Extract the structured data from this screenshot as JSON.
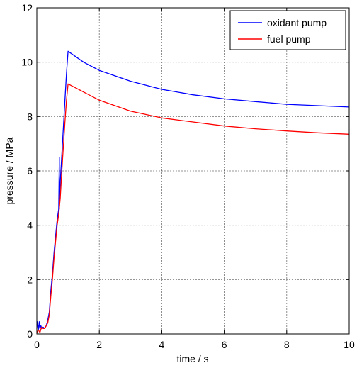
{
  "chart_data": {
    "type": "line",
    "title": "",
    "xlabel": "time / s",
    "ylabel": "pressure / MPa",
    "xlim": [
      0,
      10
    ],
    "ylim": [
      0,
      12
    ],
    "xticks": [
      0,
      2,
      4,
      6,
      8,
      10
    ],
    "yticks": [
      0,
      2,
      4,
      6,
      8,
      10,
      12
    ],
    "grid": true,
    "legend_position": "top-right",
    "series": [
      {
        "name": "oxidant pump",
        "color": "#0000ff",
        "x": [
          0.0,
          0.02,
          0.05,
          0.08,
          0.1,
          0.13,
          0.16,
          0.2,
          0.25,
          0.3,
          0.35,
          0.4,
          0.45,
          0.5,
          0.55,
          0.6,
          0.65,
          0.7,
          0.72,
          0.72,
          0.72,
          0.75,
          0.8,
          0.85,
          0.9,
          0.95,
          1.0,
          1.5,
          2.0,
          3.0,
          4.0,
          5.0,
          6.0,
          7.0,
          8.0,
          9.0,
          10.0
        ],
        "values": [
          0.2,
          0.45,
          0.15,
          0.45,
          0.2,
          0.3,
          0.2,
          0.25,
          0.2,
          0.3,
          0.5,
          0.8,
          1.6,
          2.2,
          3.0,
          3.6,
          4.2,
          4.6,
          6.5,
          4.6,
          4.8,
          5.6,
          6.6,
          7.6,
          8.6,
          9.6,
          10.4,
          10.0,
          9.7,
          9.3,
          9.0,
          8.8,
          8.65,
          8.55,
          8.45,
          8.4,
          8.35
        ]
      },
      {
        "name": "fuel pump",
        "color": "#ff0000",
        "x": [
          0.0,
          0.05,
          0.1,
          0.15,
          0.2,
          0.25,
          0.3,
          0.35,
          0.4,
          0.45,
          0.5,
          0.55,
          0.6,
          0.65,
          0.7,
          0.75,
          0.8,
          0.85,
          0.9,
          0.95,
          1.0,
          1.5,
          2.0,
          3.0,
          4.0,
          5.0,
          6.0,
          7.0,
          8.0,
          9.0,
          10.0
        ],
        "values": [
          0.05,
          0.15,
          0.05,
          0.25,
          0.2,
          0.2,
          0.3,
          0.4,
          0.7,
          1.4,
          2.0,
          2.8,
          3.4,
          4.0,
          4.4,
          5.0,
          6.0,
          6.9,
          7.8,
          8.6,
          9.2,
          8.9,
          8.6,
          8.2,
          7.95,
          7.8,
          7.65,
          7.55,
          7.47,
          7.4,
          7.35
        ]
      }
    ]
  }
}
